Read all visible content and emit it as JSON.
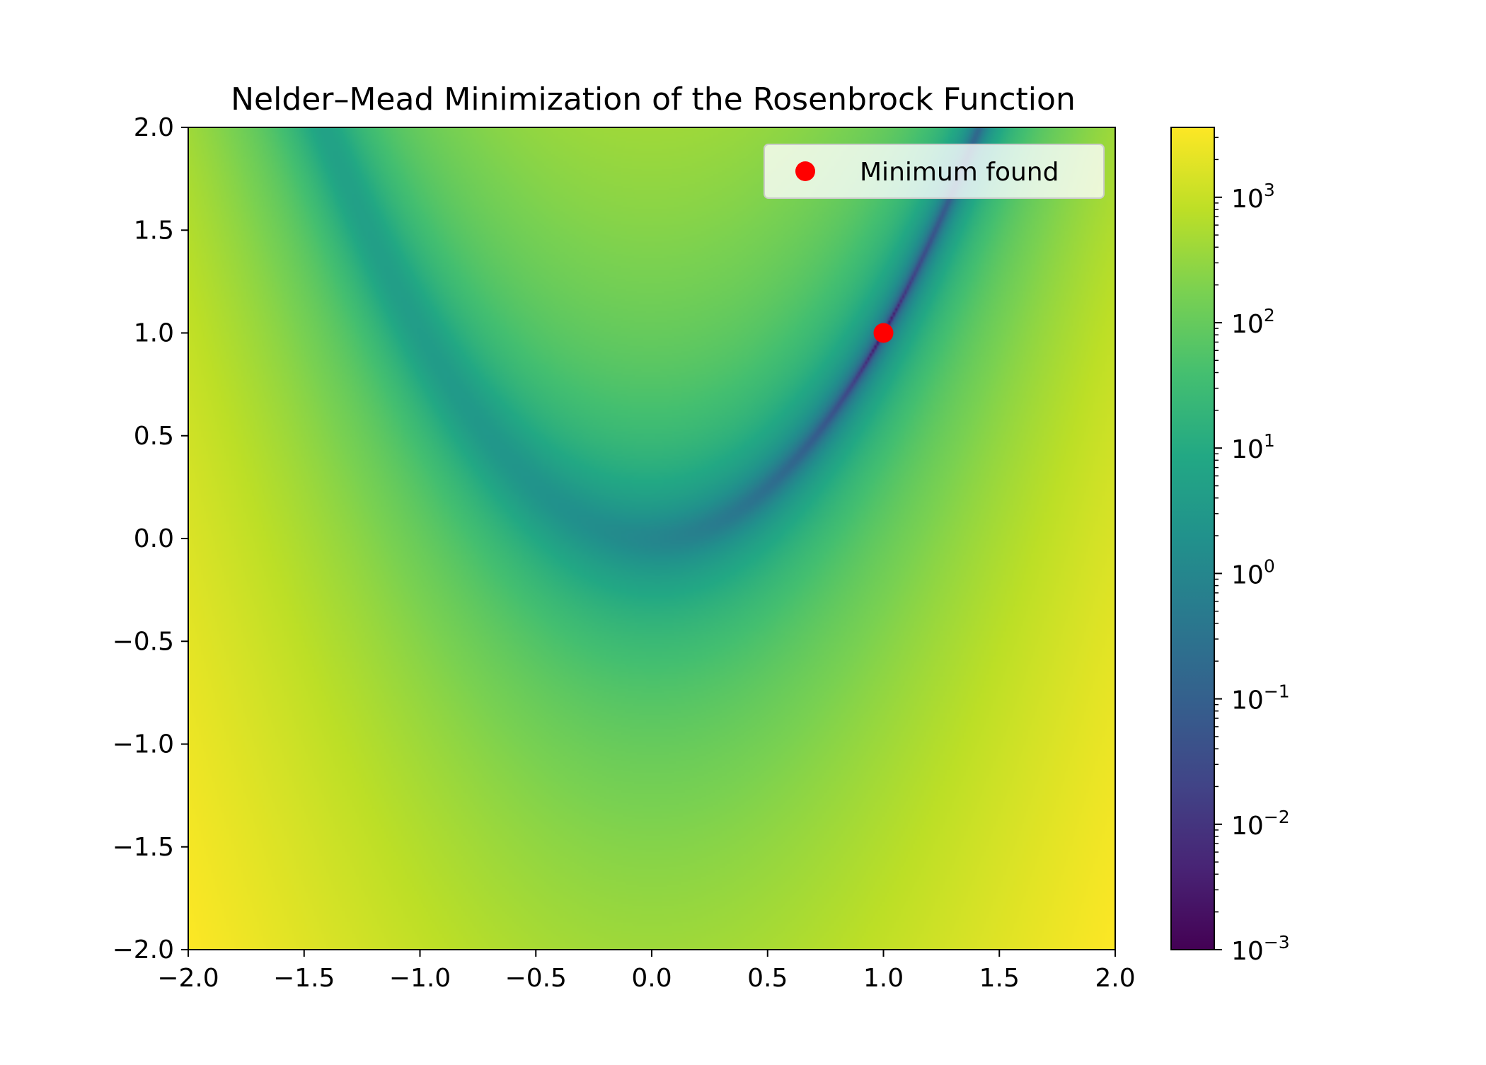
{
  "chart_data": {
    "type": "heatmap",
    "title": "Nelder–Mead Minimization of the Rosenbrock Function",
    "xlabel": "",
    "ylabel": "",
    "function": "rosenbrock",
    "xlim": [
      -2.0,
      2.0
    ],
    "ylim": [
      -2.0,
      2.0
    ],
    "x_ticks": [
      "−2.0",
      "−1.5",
      "−1.0",
      "−0.5",
      "0.0",
      "0.5",
      "1.0",
      "1.5",
      "2.0"
    ],
    "x_tick_values": [
      -2.0,
      -1.5,
      -1.0,
      -0.5,
      0.0,
      0.5,
      1.0,
      1.5,
      2.0
    ],
    "y_ticks": [
      "−2.0",
      "−1.5",
      "−1.0",
      "−0.5",
      "0.0",
      "0.5",
      "1.0",
      "1.5",
      "2.0"
    ],
    "y_tick_values": [
      -2.0,
      -1.5,
      -1.0,
      -0.5,
      0.0,
      0.5,
      1.0,
      1.5,
      2.0
    ],
    "grid": false,
    "colormap": "viridis",
    "colorbar": {
      "scale": "log",
      "range": [
        0.001,
        3609
      ],
      "ticks": [
        {
          "value": 0.001,
          "base": "10",
          "exp": "−3"
        },
        {
          "value": 0.01,
          "base": "10",
          "exp": "−2"
        },
        {
          "value": 0.1,
          "base": "10",
          "exp": "−1"
        },
        {
          "value": 1,
          "base": "10",
          "exp": "0"
        },
        {
          "value": 10,
          "base": "10",
          "exp": "1"
        },
        {
          "value": 100,
          "base": "10",
          "exp": "2"
        },
        {
          "value": 1000,
          "base": "10",
          "exp": "3"
        }
      ]
    },
    "series": [
      {
        "name": "Minimum found",
        "type": "scatter",
        "color": "#ff0000",
        "x": [
          1.0
        ],
        "y": [
          1.0
        ]
      }
    ],
    "legend": {
      "placement": "top-right",
      "entries": [
        "Minimum found"
      ]
    }
  }
}
